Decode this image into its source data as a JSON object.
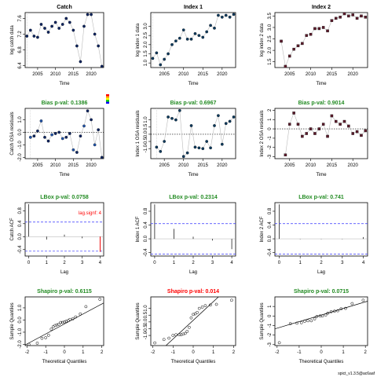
{
  "figure": {
    "footer": "spict_v1.3.5@ac6aaf",
    "colors": {
      "catch_pts": "#0b2461",
      "index1_pts": "#0c3a5e",
      "index2_pts": "#5b1b2b",
      "pval_ok": "#228b22",
      "pval_bad": "#ff0000",
      "ref_line": "#3333ff",
      "lag_sig": "#ff0000"
    }
  },
  "chart_data": [
    {
      "id": "p1",
      "type": "line",
      "title": "Catch",
      "title_color": "#000000",
      "xlabel": "Time",
      "ylabel": "log catch data",
      "xlim": [
        2001.5,
        2023.5
      ],
      "ylim": [
        6.35,
        7.75
      ],
      "xticks": [
        2005,
        2010,
        2015,
        2020
      ],
      "yticks": [
        6.4,
        6.8,
        7.2,
        7.6
      ],
      "ytick_labels": [
        "6.4",
        "6.8",
        "7.2",
        "7.6"
      ],
      "x": [
        2002,
        2003,
        2004,
        2005,
        2006,
        2007,
        2008,
        2009,
        2010,
        2011,
        2012,
        2013,
        2014,
        2015,
        2016,
        2017,
        2018,
        2019,
        2020,
        2021,
        2022,
        2023
      ],
      "values": [
        7.15,
        7.3,
        7.15,
        7.12,
        7.45,
        7.35,
        7.25,
        7.4,
        7.5,
        7.35,
        7.45,
        7.6,
        7.5,
        7.3,
        6.9,
        6.5,
        7.4,
        7.7,
        7.7,
        7.2,
        6.9,
        6.38
      ],
      "marker": "filled-circle",
      "connect": true
    },
    {
      "id": "p2",
      "type": "line",
      "title": "Index 1",
      "title_color": "#000000",
      "xlabel": "Time",
      "ylabel": "log index 1 data",
      "xlim": [
        2001.5,
        2023.5
      ],
      "ylim": [
        0.75,
        3.75
      ],
      "xticks": [
        2005,
        2010,
        2015,
        2020
      ],
      "yticks": [
        1.0,
        1.5,
        2.0,
        2.5,
        3.0
      ],
      "ytick_labels": [
        "1.0",
        "1.5",
        "2.0",
        "2.5",
        "3.0"
      ],
      "x": [
        2002,
        2003,
        2004,
        2005,
        2006,
        2007,
        2008,
        2009,
        2010,
        2011,
        2012,
        2013,
        2014,
        2015,
        2016,
        2017,
        2018,
        2019,
        2020,
        2021,
        2022,
        2023
      ],
      "values": [
        1.25,
        1.55,
        0.9,
        1.2,
        1.5,
        2.0,
        2.2,
        2.35,
        2.8,
        2.3,
        2.3,
        2.6,
        2.5,
        2.4,
        2.7,
        3.05,
        2.9,
        3.6,
        3.5,
        3.6,
        3.5,
        3.65
      ],
      "marker": "filled-circle",
      "connect": true
    },
    {
      "id": "p3",
      "type": "line",
      "title": "Index 2",
      "title_color": "#000000",
      "xlabel": "Time",
      "ylabel": "log index 2 data",
      "xlim": [
        2001.5,
        2023.5
      ],
      "ylim": [
        1.25,
        3.65
      ],
      "xticks": [
        2005,
        2010,
        2015,
        2020
      ],
      "yticks": [
        1.5,
        2.0,
        2.5,
        3.0,
        3.5
      ],
      "ytick_labels": [
        "1.5",
        "2.0",
        "2.5",
        "3.0",
        "3.5"
      ],
      "x": [
        2003,
        2004,
        2005,
        2006,
        2007,
        2008,
        2009,
        2010,
        2011,
        2012,
        2013,
        2014,
        2015,
        2016,
        2017,
        2018,
        2019,
        2020,
        2021,
        2022,
        2023
      ],
      "values": [
        2.4,
        1.3,
        1.75,
        2.05,
        2.2,
        2.3,
        2.65,
        2.7,
        2.95,
        2.95,
        3.0,
        2.85,
        3.3,
        3.4,
        3.45,
        3.6,
        3.5,
        3.55,
        3.4,
        3.5,
        3.45
      ],
      "marker": "filled-square",
      "connect": true
    },
    {
      "id": "p4",
      "type": "line",
      "title": "Bias p-val: 0.1386",
      "title_color": "#228b22",
      "xlabel": "Time",
      "ylabel": "Catch OSA residuals",
      "xlim": [
        2001.5,
        2023.5
      ],
      "ylim": [
        -2.1,
        1.9
      ],
      "xticks": [
        2005,
        2010,
        2015,
        2020
      ],
      "yticks": [
        -2,
        -1,
        0,
        1
      ],
      "ytick_labels": [
        "-2.0",
        "-1.0",
        "0.0",
        "1.0"
      ],
      "hline": 0,
      "x": [
        2003,
        2004,
        2005,
        2006,
        2007,
        2008,
        2009,
        2010,
        2011,
        2012,
        2013,
        2014,
        2015,
        2016,
        2017,
        2018,
        2019,
        2020,
        2021,
        2022,
        2023
      ],
      "values": [
        -0.4,
        -0.3,
        0.1,
        0.9,
        -0.4,
        -0.7,
        -0.2,
        -0.1,
        0.0,
        -0.5,
        -0.4,
        -0.1,
        -1.4,
        -1.6,
        -0.3,
        0.5,
        1.7,
        1.0,
        -1.0,
        0.2,
        -2.0
      ],
      "marker": "filled-circle-bicolor",
      "connect": true,
      "legend": {
        "colors": [
          "#ff0000",
          "#ff9900",
          "#ffff00",
          "#00cc00",
          "#0000ff"
        ]
      }
    },
    {
      "id": "p5",
      "type": "line",
      "title": "Bias p-val: 0.6967",
      "title_color": "#228b22",
      "xlabel": "Time",
      "ylabel": "Index 1 OSA residuals",
      "xlim": [
        2001.5,
        2023.5
      ],
      "ylim": [
        -1.7,
        1.8
      ],
      "xticks": [
        2005,
        2010,
        2015,
        2020
      ],
      "yticks": [
        -1.0,
        -0.5,
        0.0,
        0.5,
        1.0
      ],
      "ytick_labels": [
        "-1.0",
        "-0.5",
        "0.0",
        "0.5",
        "1.0"
      ],
      "hline": 0,
      "x": [
        2003,
        2004,
        2005,
        2006,
        2007,
        2008,
        2009,
        2010,
        2011,
        2012,
        2013,
        2014,
        2015,
        2016,
        2017,
        2018,
        2019,
        2020,
        2021,
        2022,
        2023
      ],
      "values": [
        -0.9,
        -1.2,
        -0.5,
        1.2,
        1.1,
        1.0,
        1.65,
        -1.55,
        -1.3,
        0.6,
        -0.9,
        -0.95,
        -1.0,
        -0.5,
        -0.95,
        0.6,
        1.3,
        -0.7,
        0.75,
        0.9,
        1.2
      ],
      "marker": "filled-circle",
      "connect": true
    },
    {
      "id": "p6",
      "type": "line",
      "title": "Bias p-val: 0.9014",
      "title_color": "#228b22",
      "xlabel": "Time",
      "ylabel": "Index 2 OSA residuals",
      "xlim": [
        2001.5,
        2023.5
      ],
      "ylim": [
        -3.2,
        2.2
      ],
      "xticks": [
        2005,
        2010,
        2015,
        2020
      ],
      "yticks": [
        -3,
        -2,
        -1,
        0,
        1,
        2
      ],
      "ytick_labels": [
        "-3",
        "-2",
        "-1",
        "0",
        "1",
        "2"
      ],
      "hline": 0,
      "x": [
        2004,
        2005,
        2006,
        2007,
        2008,
        2009,
        2010,
        2011,
        2012,
        2013,
        2014,
        2015,
        2016,
        2017,
        2018,
        2019,
        2020,
        2021,
        2022,
        2023
      ],
      "values": [
        -2.8,
        0.5,
        1.7,
        0.5,
        -0.8,
        -0.5,
        0.0,
        -0.5,
        0.0,
        0.5,
        -0.8,
        1.4,
        0.8,
        0.5,
        0.8,
        0.3,
        -0.5,
        -0.3,
        -0.7,
        -0.2
      ],
      "marker": "filled-square",
      "connect": true
    },
    {
      "id": "p7",
      "type": "bar",
      "subtype": "acf",
      "title": "LBox p-val: 0.0758",
      "title_color": "#228b22",
      "xlabel": "Lag",
      "ylabel": "Catch ACF",
      "xlim": [
        -0.2,
        4.2
      ],
      "ylim": [
        -0.6,
        1.05
      ],
      "xticks": [
        0,
        1,
        2,
        3,
        4
      ],
      "yticks": [
        -0.4,
        0.0,
        0.4,
        0.8
      ],
      "ytick_labels": [
        "-0.4",
        "0.0",
        "0.4",
        "0.8"
      ],
      "lags": [
        0,
        1,
        2,
        3,
        4
      ],
      "values": [
        1.0,
        -0.09,
        0.06,
        -0.05,
        -0.47
      ],
      "ci": 0.45,
      "annotation": "lag.signf: 4"
    },
    {
      "id": "p8",
      "type": "bar",
      "subtype": "acf",
      "title": "LBox p-val: 0.2314",
      "title_color": "#228b22",
      "xlabel": "Lag",
      "ylabel": "Index 1 ACF",
      "xlim": [
        -0.2,
        4.2
      ],
      "ylim": [
        -0.5,
        1.05
      ],
      "xticks": [
        0,
        1,
        2,
        3,
        4
      ],
      "yticks": [
        -0.4,
        0.0,
        0.4,
        0.8
      ],
      "ytick_labels": [
        "-0.4",
        "0.0",
        "0.4",
        "0.8"
      ],
      "lags": [
        0,
        1,
        2,
        3,
        4
      ],
      "values": [
        1.0,
        0.29,
        0.06,
        -0.05,
        -0.3
      ],
      "ci": 0.44
    },
    {
      "id": "p9",
      "type": "bar",
      "subtype": "acf",
      "title": "LBox p-val: 0.741",
      "title_color": "#228b22",
      "xlabel": "Lag",
      "ylabel": "Index 2 ACF",
      "xlim": [
        -0.2,
        4.2
      ],
      "ylim": [
        -0.5,
        1.05
      ],
      "xticks": [
        0,
        1,
        2,
        3,
        4
      ],
      "yticks": [
        -0.4,
        0.0,
        0.4,
        0.8
      ],
      "ytick_labels": [
        "-0.4",
        "0.0",
        "0.4",
        "0.8"
      ],
      "lags": [
        0,
        1,
        2,
        3,
        4
      ],
      "values": [
        1.0,
        -0.01,
        -0.01,
        -0.01,
        0.05
      ],
      "ci": 0.44
    },
    {
      "id": "p10",
      "type": "scatter",
      "subtype": "qq",
      "title": "Shapiro p-val: 0.6115",
      "title_color": "#228b22",
      "xlabel": "Theoretical Quantiles",
      "ylabel": "Sample Quantiles",
      "xlim": [
        -2.1,
        2.1
      ],
      "ylim": [
        -2.1,
        1.9
      ],
      "xticks": [
        -2,
        -1,
        0,
        1,
        2
      ],
      "yticks": [
        -2,
        -1,
        0,
        1
      ],
      "ytick_labels": [
        "-2.0",
        "-1.0",
        "0.0",
        "1.0"
      ],
      "x": [
        -1.9,
        -1.45,
        -1.2,
        -1.0,
        -0.85,
        -0.7,
        -0.6,
        -0.5,
        -0.4,
        -0.3,
        -0.2,
        -0.1,
        0.0,
        0.1,
        0.2,
        0.3,
        0.45,
        0.6,
        0.85,
        1.15,
        1.9
      ],
      "values": [
        -2.0,
        -1.9,
        -1.5,
        -1.45,
        -1.25,
        -0.75,
        -0.55,
        -0.45,
        -0.4,
        -0.35,
        -0.2,
        -0.2,
        -0.15,
        -0.1,
        -0.05,
        0.05,
        0.1,
        0.25,
        0.5,
        1.1,
        1.7
      ],
      "qqline": [
        [
          -2.1,
          -2.05
        ],
        [
          2.1,
          1.4
        ]
      ]
    },
    {
      "id": "p11",
      "type": "scatter",
      "subtype": "qq",
      "title": "Shapiro p-val: 0.014",
      "title_color": "#ff0000",
      "xlabel": "Theoretical Quantiles",
      "ylabel": "Sample Quantiles",
      "xlim": [
        -2.1,
        2.1
      ],
      "ylim": [
        -1.75,
        1.85
      ],
      "xticks": [
        -2,
        -1,
        0,
        1,
        2
      ],
      "yticks": [
        -1.0,
        -0.5,
        0.0,
        0.5,
        1.0
      ],
      "ytick_labels": [
        "-1.0",
        "-0.5",
        "0.0",
        "0.5",
        "1.0"
      ],
      "x": [
        -1.9,
        -1.45,
        -1.2,
        -1.0,
        -0.85,
        -0.7,
        -0.6,
        -0.5,
        -0.4,
        -0.3,
        -0.2,
        -0.1,
        0.0,
        0.1,
        0.2,
        0.3,
        0.45,
        0.6,
        0.85,
        1.15,
        1.9
      ],
      "values": [
        -1.55,
        -1.3,
        -1.2,
        -1.0,
        -0.95,
        -0.95,
        -0.95,
        -0.9,
        -0.85,
        -0.7,
        -0.4,
        0.3,
        0.55,
        0.6,
        0.7,
        1.0,
        1.1,
        1.2,
        1.25,
        1.3,
        1.6
      ],
      "qqline": [
        [
          -1.35,
          -1.75
        ],
        [
          1.25,
          1.85
        ]
      ]
    },
    {
      "id": "p12",
      "type": "scatter",
      "subtype": "qq",
      "title": "Shapiro p-val: 0.0715",
      "title_color": "#228b22",
      "xlabel": "Theoretical Quantiles",
      "ylabel": "Sample Quantiles",
      "xlim": [
        -2.1,
        2.1
      ],
      "ylim": [
        -3.1,
        2.0
      ],
      "xticks": [
        -2,
        -1,
        0,
        1,
        2
      ],
      "yticks": [
        -3,
        -2,
        -1,
        0,
        1
      ],
      "ytick_labels": [
        "-3",
        "-2",
        "-1",
        "0",
        "1"
      ],
      "x": [
        -1.9,
        -1.4,
        -1.1,
        -0.9,
        -0.75,
        -0.6,
        -0.45,
        -0.3,
        -0.2,
        -0.05,
        0.05,
        0.2,
        0.3,
        0.45,
        0.6,
        0.75,
        0.9,
        1.1,
        1.4,
        1.9
      ],
      "values": [
        -2.8,
        -0.8,
        -0.75,
        -0.7,
        -0.55,
        -0.5,
        -0.5,
        -0.3,
        -0.05,
        0.0,
        0.0,
        0.1,
        0.3,
        0.45,
        0.5,
        0.55,
        0.75,
        0.8,
        1.3,
        1.65
      ],
      "qqline": [
        [
          -2.1,
          -1.35
        ],
        [
          2.1,
          1.55
        ]
      ]
    }
  ]
}
